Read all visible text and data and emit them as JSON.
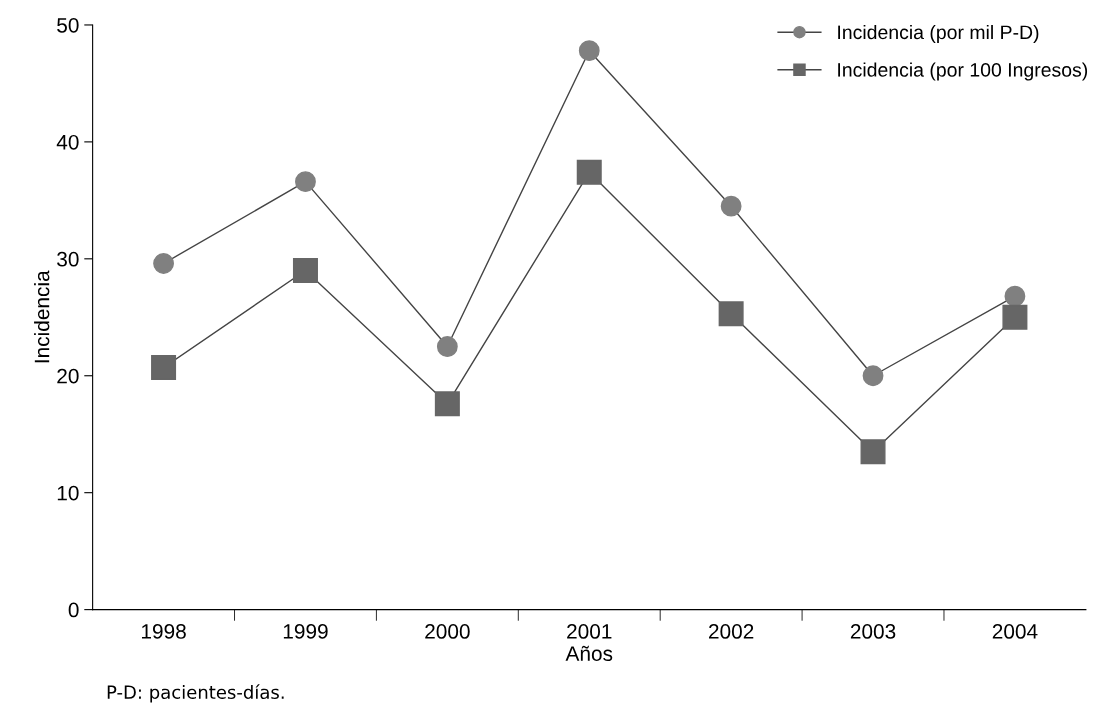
{
  "chart_data": {
    "type": "line",
    "xlabel": "Años",
    "ylabel": "Incidencia",
    "categories": [
      "1998",
      "1999",
      "2000",
      "2001",
      "2002",
      "2003",
      "2004"
    ],
    "series": [
      {
        "name": "Incidencia (por mil P-D)",
        "color": "#808080",
        "marker": "circle",
        "values": [
          29.6,
          36.6,
          22.5,
          47.8,
          34.5,
          20.0,
          26.8
        ]
      },
      {
        "name": "Incidencia (por 100 Ingresos)",
        "color": "#666666",
        "marker": "square",
        "values": [
          20.7,
          29.0,
          17.6,
          37.4,
          25.3,
          13.5,
          25.0
        ]
      }
    ],
    "ylim": [
      0,
      50
    ],
    "yticks": [
      0,
      10,
      20,
      30,
      40,
      50
    ],
    "grid": false,
    "legend": "top right",
    "annotations": [
      "P-D: pacientes-días."
    ]
  }
}
